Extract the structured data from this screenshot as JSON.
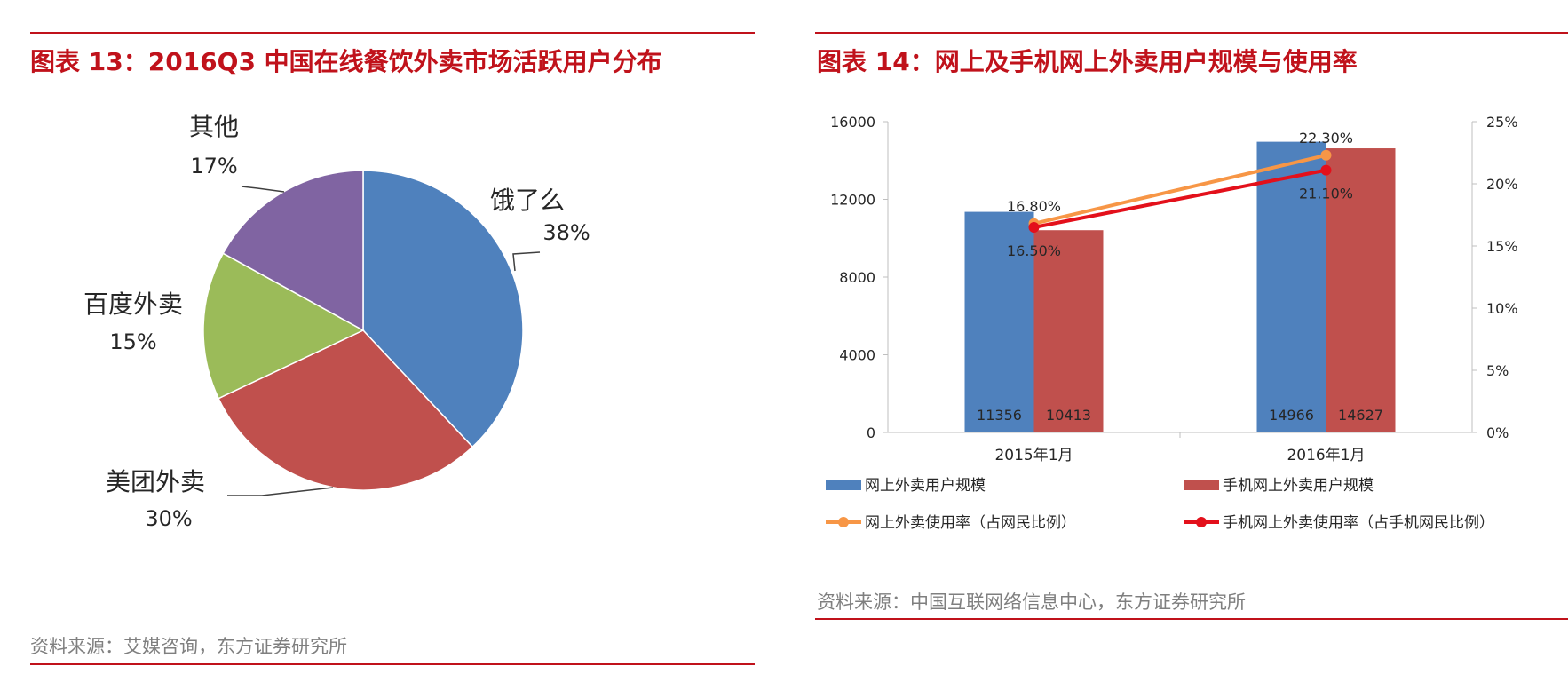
{
  "left": {
    "title": "图表 13：2016Q3 中国在线餐饮外卖市场活跃用户分布",
    "source": "资料来源：艾媒咨询，东方证券研究所",
    "chart_data": {
      "type": "pie",
      "title": "",
      "slices": [
        {
          "label": "饿了么",
          "value": 38,
          "display": "38%",
          "color": "#4f81bd"
        },
        {
          "label": "美团外卖",
          "value": 30,
          "display": "30%",
          "color": "#c0504d"
        },
        {
          "label": "百度外卖",
          "value": 15,
          "display": "15%",
          "color": "#9bbb59"
        },
        {
          "label": "其他",
          "value": 17,
          "display": "17%",
          "color": "#8064a2"
        }
      ]
    }
  },
  "right": {
    "title": "图表 14：网上及手机网上外卖用户规模与使用率",
    "source": "资料来源：中国互联网络信息中心，东方证券研究所",
    "chart_data": {
      "type": "bar",
      "title": "",
      "categories": [
        "2015年1月",
        "2016年1月"
      ],
      "y_left": {
        "range": [
          0,
          16000
        ],
        "ticks": [
          "0",
          "4000",
          "8000",
          "12000",
          "16000"
        ],
        "tick_values": [
          0,
          4000,
          8000,
          12000,
          16000
        ]
      },
      "y_right": {
        "range": [
          0,
          25
        ],
        "ticks": [
          "0%",
          "5%",
          "10%",
          "15%",
          "20%",
          "25%"
        ],
        "tick_values": [
          0,
          5,
          10,
          15,
          20,
          25
        ]
      },
      "series": [
        {
          "name": "网上外卖用户规模",
          "kind": "bar",
          "axis": "left",
          "values": [
            11356,
            14966
          ],
          "labels": [
            "11356",
            "14966"
          ],
          "color": "#4f81bd"
        },
        {
          "name": "手机网上外卖用户规模",
          "kind": "bar",
          "axis": "left",
          "values": [
            10413,
            14627
          ],
          "labels": [
            "10413",
            "14627"
          ],
          "color": "#c0504d"
        },
        {
          "name": "网上外卖使用率（占网民比例）",
          "kind": "line",
          "axis": "right",
          "values": [
            16.8,
            22.3
          ],
          "labels": [
            "16.80%",
            "22.30%"
          ],
          "color": "#f79646"
        },
        {
          "name": "手机网上外卖使用率（占手机网民比例）",
          "kind": "line",
          "axis": "right",
          "values": [
            16.5,
            21.1
          ],
          "labels": [
            "16.50%",
            "21.10%"
          ],
          "color": "#e3101b"
        }
      ],
      "legend_position": "bottom"
    }
  }
}
